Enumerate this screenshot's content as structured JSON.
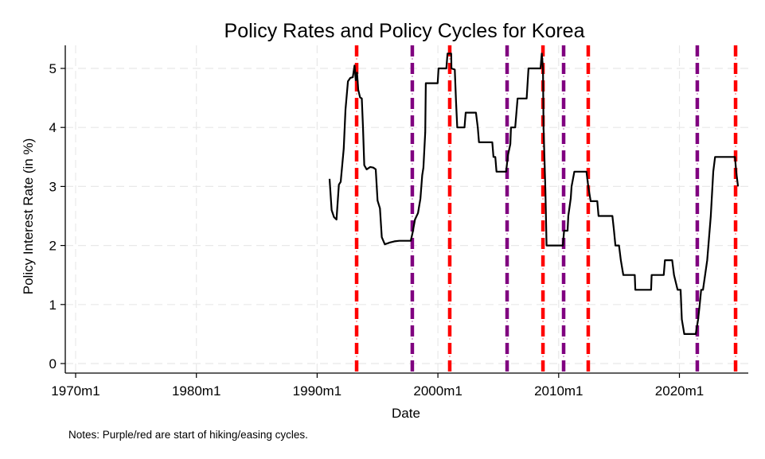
{
  "chart_data": {
    "type": "line",
    "title": "Policy Rates and Policy Cycles for Korea",
    "xlabel": "Date",
    "ylabel": "Policy Interest Rate (in %)",
    "note": "Notes: Purple/red are start of hiking/easing cycles.",
    "xlim": [
      1969.2,
      2026.2
    ],
    "ylim": [
      -0.16,
      5.4
    ],
    "grid": true,
    "x_ticks": [
      {
        "value": 1970,
        "label": "1970m1"
      },
      {
        "value": 1980,
        "label": "1980m1"
      },
      {
        "value": 1990,
        "label": "1990m1"
      },
      {
        "value": 2000,
        "label": "2000m1"
      },
      {
        "value": 2010,
        "label": "2010m1"
      },
      {
        "value": 2020,
        "label": "2020m1"
      }
    ],
    "y_ticks": [
      {
        "value": 0,
        "label": "0"
      },
      {
        "value": 1,
        "label": "1"
      },
      {
        "value": 2,
        "label": "2"
      },
      {
        "value": 3,
        "label": "3"
      },
      {
        "value": 4,
        "label": "4"
      },
      {
        "value": 5,
        "label": "5"
      }
    ],
    "colors": {
      "series": "#000000",
      "hiking": "#800080",
      "easing": "#ff0000",
      "grid": "#e8e8e8",
      "axis": "#000000"
    },
    "series": [
      {
        "name": "Policy Interest Rate",
        "x": [
          1991.03,
          1991.2,
          1991.4,
          1991.6,
          1991.8,
          1991.95,
          1992.2,
          1992.35,
          1992.55,
          1992.75,
          1992.95,
          1993.1,
          1993.2,
          1993.3,
          1993.4,
          1993.55,
          1993.7,
          1993.8,
          1993.9,
          1994.1,
          1994.4,
          1994.65,
          1994.85,
          1995.0,
          1995.2,
          1995.35,
          1995.6,
          1995.9,
          1996.0,
          1996.4,
          1996.8,
          1997.3,
          1997.75,
          1997.9,
          1998.1,
          1998.35,
          1998.55,
          1998.7,
          1998.8,
          1998.95,
          1999.0,
          1999.98,
          2000.05,
          2000.7,
          2000.8,
          2001.1,
          2001.12,
          2001.4,
          2001.5,
          2001.6,
          2002.2,
          2002.3,
          2003.15,
          2003.3,
          2003.4,
          2004.5,
          2004.6,
          2004.75,
          2004.85,
          2005.65,
          2005.8,
          2006.0,
          2006.05,
          2006.4,
          2006.6,
          2007.35,
          2007.5,
          2008.5,
          2008.6,
          2008.7,
          2008.75,
          2008.9,
          2009.0,
          2010.35,
          2010.45,
          2010.74,
          2010.8,
          2011.0,
          2011.07,
          2011.3,
          2012.3,
          2012.45,
          2012.65,
          2013.2,
          2013.3,
          2014.45,
          2014.58,
          2014.7,
          2015.0,
          2015.15,
          2015.35,
          2016.3,
          2016.35,
          2017.65,
          2017.7,
          2018.7,
          2018.8,
          2019.4,
          2019.55,
          2019.85,
          2020.1,
          2020.2,
          2020.4,
          2021.35,
          2021.55,
          2021.68,
          2021.8,
          2021.95,
          2022.3,
          2022.6,
          2022.8,
          2022.95,
          2024.6,
          2024.7,
          2024.85
        ],
        "y": [
          3.13,
          2.6,
          2.48,
          2.44,
          3.03,
          3.08,
          3.64,
          4.3,
          4.78,
          4.84,
          4.85,
          5.05,
          4.8,
          4.93,
          4.64,
          4.51,
          4.49,
          4.0,
          3.36,
          3.29,
          3.33,
          3.32,
          3.29,
          2.76,
          2.63,
          2.14,
          2.02,
          2.04,
          2.05,
          2.07,
          2.08,
          2.08,
          2.08,
          2.21,
          2.44,
          2.55,
          2.79,
          3.19,
          3.32,
          3.92,
          4.75,
          4.75,
          5.0,
          5.0,
          5.25,
          5.25,
          5.0,
          4.98,
          4.43,
          4.0,
          4.0,
          4.25,
          4.25,
          4.0,
          3.75,
          3.75,
          3.5,
          3.5,
          3.25,
          3.25,
          3.53,
          3.72,
          4.0,
          4.0,
          4.49,
          4.49,
          5.0,
          5.0,
          5.25,
          5.0,
          4.0,
          2.95,
          2.0,
          2.0,
          2.25,
          2.25,
          2.5,
          2.8,
          3.0,
          3.25,
          3.25,
          3.0,
          2.75,
          2.75,
          2.5,
          2.5,
          2.25,
          2.0,
          2.0,
          1.75,
          1.5,
          1.5,
          1.25,
          1.25,
          1.5,
          1.5,
          1.75,
          1.75,
          1.5,
          1.25,
          1.25,
          0.75,
          0.5,
          0.5,
          0.75,
          1.0,
          1.25,
          1.25,
          1.75,
          2.5,
          3.25,
          3.5,
          3.5,
          3.25,
          3.0
        ]
      }
    ],
    "cycle_starts": [
      {
        "date": 1993.27,
        "type": "easing"
      },
      {
        "date": 1997.88,
        "type": "hiking"
      },
      {
        "date": 2000.98,
        "type": "easing"
      },
      {
        "date": 2005.73,
        "type": "hiking"
      },
      {
        "date": 2008.7,
        "type": "easing"
      },
      {
        "date": 2010.41,
        "type": "hiking"
      },
      {
        "date": 2012.45,
        "type": "easing"
      },
      {
        "date": 2021.48,
        "type": "hiking"
      },
      {
        "date": 2024.65,
        "type": "easing"
      }
    ],
    "legend": "none"
  }
}
